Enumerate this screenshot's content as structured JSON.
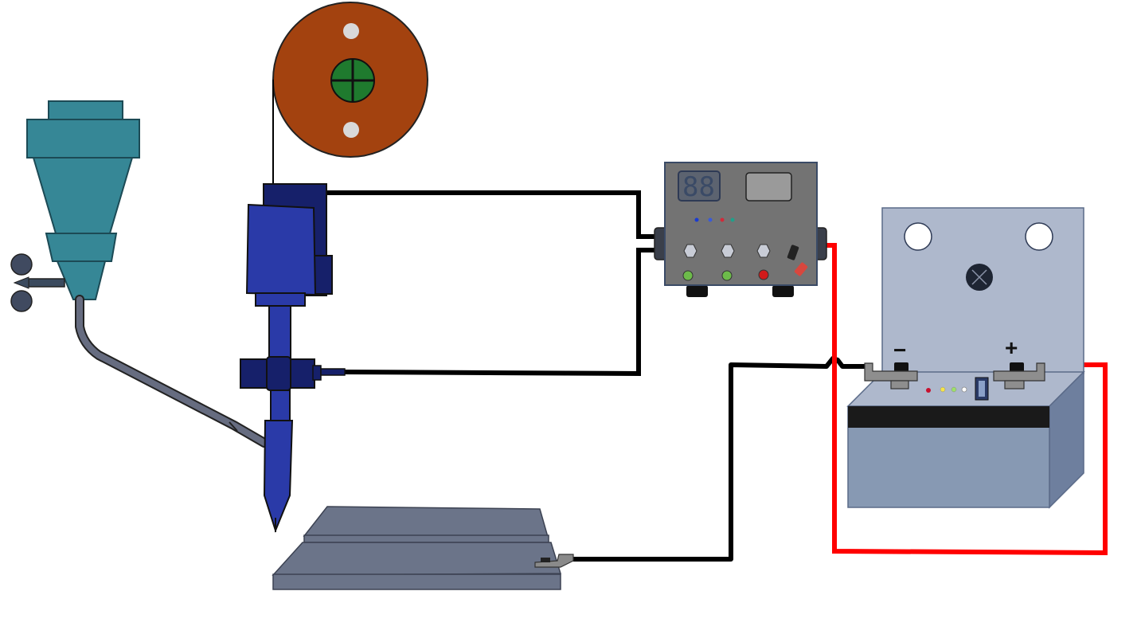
{
  "colors": {
    "hopper": "#368796",
    "hopper_stroke": "#1c4a55",
    "torch": "#2a3aa8",
    "torch_dark": "#16206a",
    "spool": "#a3420f",
    "spool_hub": "#1f7a2e",
    "power_supply": "#737373",
    "battery_panel": "#aeb8cc",
    "battery_body": "#8799b3",
    "battery_band": "#1a1a1a",
    "workpiece": "#6b7489",
    "wire_black": "#000000",
    "wire_red": "#ff0000",
    "feed_tube": "#666c80"
  },
  "battery": {
    "negative_label": "−",
    "positive_label": "+"
  },
  "power_supply": {
    "display_digits": "88"
  },
  "icons": [
    "powder-hopper-icon",
    "wire-spool-icon",
    "deposition-torch-icon",
    "power-supply-icon",
    "battery-icon",
    "workpiece-plate-icon"
  ]
}
